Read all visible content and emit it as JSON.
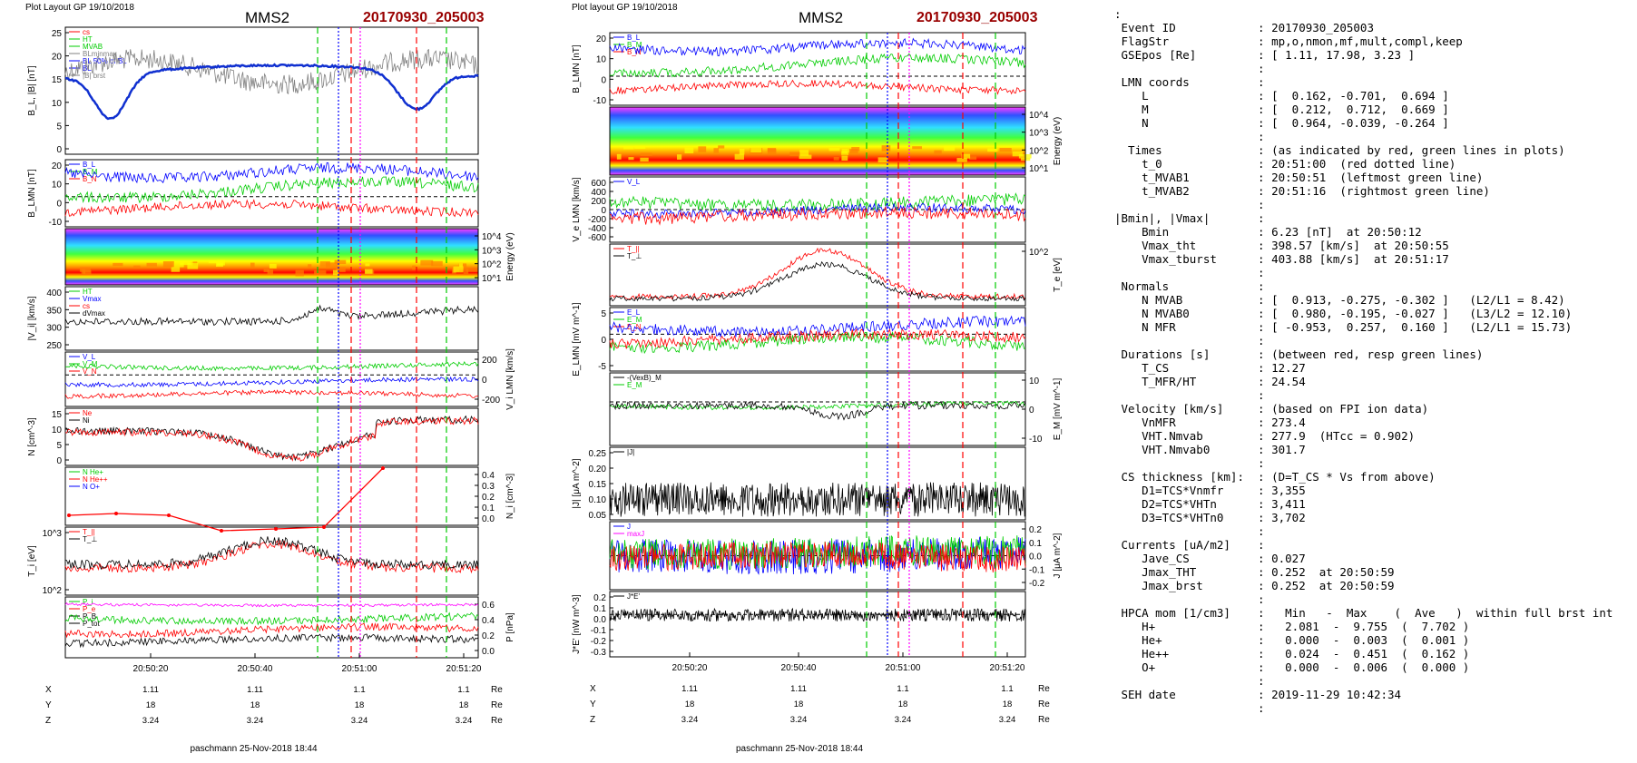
{
  "colors": {
    "blue": "#0000ff",
    "green": "#00cc00",
    "red": "#ff0000",
    "magenta": "#ff00ff",
    "black": "#000000",
    "gray": "#808080",
    "thickblue": "#1030d0",
    "darkred": "#990000"
  },
  "left": {
    "header": "Plot Layout GP 19/10/2018",
    "sc": "MMS2",
    "event": "20170930_205003",
    "footer": "paschmann 25-Nov-2018 18:44",
    "time_ticks": [
      "20:50:20",
      "20:50:40",
      "20:51:00",
      "20:51:20"
    ],
    "pos_rows": [
      {
        "label": "X",
        "vals": [
          "1.11",
          "1.11",
          "1.1",
          "1.1"
        ],
        "unit": "Re"
      },
      {
        "label": "Y",
        "vals": [
          "18",
          "18",
          "18",
          "18"
        ],
        "unit": "Re"
      },
      {
        "label": "Z",
        "vals": [
          "3.24",
          "3.24",
          "3.24",
          "3.24"
        ],
        "unit": "Re"
      }
    ],
    "panels": [
      {
        "ylabel": "B_L, |B| [nT]",
        "left_ticks": [
          "25",
          "20",
          "15",
          "10",
          "5",
          "0"
        ],
        "legend": [
          "cs",
          "HT",
          "MVAB",
          "BLminmax",
          "BL 50% of BL",
          "BL",
          "|B| brst"
        ]
      },
      {
        "ylabel": "B_LMN [nT]",
        "left_ticks": [
          "20",
          "10",
          "0",
          "-10"
        ],
        "legend": [
          "B_L",
          "B_M",
          "B_N"
        ]
      },
      {
        "ylabel": "Energy (eV)",
        "right_ticks": [
          "10^4",
          "10^3",
          "10^2",
          "10^1"
        ]
      },
      {
        "ylabel": "|V_i| [km/s]",
        "left_ticks": [
          "400",
          "350",
          "300",
          "250"
        ],
        "legend": [
          "HT",
          "Vmax",
          "cs",
          "dVmax"
        ]
      },
      {
        "ylabel": "V_i LMN [km/s]",
        "right_ticks": [
          "200",
          "0",
          "-200"
        ],
        "legend": [
          "V_L",
          "V_M",
          "V_N"
        ]
      },
      {
        "ylabel": "N [cm^-3]",
        "left_ticks": [
          "15",
          "10",
          "5",
          "0"
        ],
        "legend": [
          "Ne",
          "Ni"
        ]
      },
      {
        "ylabel": "N_i [cm^-3]",
        "right_ticks": [
          "0.4",
          "0.3",
          "0.2",
          "0.1",
          "0.0"
        ],
        "legend": [
          "N  He+",
          "N  He++",
          "N  O+"
        ]
      },
      {
        "ylabel": "T_i [eV]",
        "left_ticks": [
          "10^3",
          "10^2"
        ],
        "legend": [
          "T_||",
          "T_⊥"
        ]
      },
      {
        "ylabel": "P [nPa]",
        "right_ticks": [
          "0.6",
          "0.4",
          "0.2",
          "0.0"
        ],
        "legend": [
          "P_i",
          "P_e",
          "P_B",
          "P_tot"
        ]
      }
    ]
  },
  "right": {
    "header": "Plot layout GP 19/10/2018",
    "sc": "MMS2",
    "event": "20170930_205003",
    "footer": "paschmann 25-Nov-2018 18:44",
    "time_ticks": [
      "20:50:20",
      "20:50:40",
      "20:51:00",
      "20:51:20"
    ],
    "pos_rows": [
      {
        "label": "X",
        "vals": [
          "1.11",
          "1.11",
          "1.1",
          "1.1"
        ],
        "unit": "Re"
      },
      {
        "label": "Y",
        "vals": [
          "18",
          "18",
          "18",
          "18"
        ],
        "unit": "Re"
      },
      {
        "label": "Z",
        "vals": [
          "3.24",
          "3.24",
          "3.24",
          "3.24"
        ],
        "unit": "Re"
      }
    ],
    "panels": [
      {
        "ylabel": "B_LMN [nT]",
        "left_ticks": [
          "20",
          "10",
          "0",
          "-10"
        ],
        "legend": [
          "B_L",
          "B_M",
          "B_N"
        ]
      },
      {
        "ylabel": "Energy (eV)",
        "right_ticks": [
          "10^4",
          "10^3",
          "10^2",
          "10^1"
        ]
      },
      {
        "ylabel": "V_e LMN [km/s]",
        "left_ticks": [
          "600",
          "400",
          "200",
          "0",
          "-200",
          "-400",
          "-600"
        ],
        "legend": [
          "V_L"
        ]
      },
      {
        "ylabel": "T_e [eV]",
        "right_ticks": [
          "10^2"
        ],
        "legend": [
          "T_||",
          "T_⊥"
        ]
      },
      {
        "ylabel": "E_LMN [mV m^-1]",
        "left_ticks": [
          "5",
          "0",
          "-5"
        ],
        "legend": [
          "E_L",
          "E_M",
          "E_N"
        ]
      },
      {
        "ylabel": "E_M [mV m^-1]",
        "right_ticks": [
          "10",
          "0",
          "-10"
        ],
        "legend": [
          "-(VexB)_M",
          "E_M"
        ]
      },
      {
        "ylabel": "|J| [μA m^-2]",
        "left_ticks": [
          "0.25",
          "0.20",
          "0.15",
          "0.10",
          "0.05"
        ],
        "legend": [
          "|J|"
        ]
      },
      {
        "ylabel": "J [μA m^-2]",
        "right_ticks": [
          "0.2",
          "0.1",
          "0.0",
          "-0.1",
          "-0.2"
        ],
        "legend": [
          "J",
          "maxJ"
        ]
      },
      {
        "ylabel": "J*E' [nW m^-3]",
        "left_ticks": [
          "0.2",
          "0.1",
          "0.0",
          "-0.1",
          "-0.2",
          "-0.3"
        ],
        "legend": [
          "J*E'"
        ]
      }
    ]
  },
  "chart_data": [
    {
      "type": "line",
      "title": "MMS2 20170930_205003",
      "xlabel": "time",
      "x_ticks": [
        "20:50:20",
        "20:50:40",
        "20:51:00",
        "20:51:20"
      ],
      "series": [
        {
          "name": "BL",
          "x": [
            "20:50:07",
            "20:50:10",
            "20:50:13",
            "20:50:16",
            "20:50:22",
            "20:50:30",
            "20:50:38",
            "20:50:46",
            "20:50:52",
            "20:50:57",
            "20:51:02",
            "20:51:06",
            "20:51:10",
            "20:51:14",
            "20:51:18",
            "20:51:22"
          ],
          "values": [
            16,
            12,
            5,
            8,
            12,
            15,
            18,
            17,
            14,
            17,
            16,
            11,
            9,
            6,
            7,
            8
          ]
        },
        {
          "name": "|B| brst",
          "x": [
            "20:50:07",
            "20:50:15",
            "20:50:25",
            "20:50:35",
            "20:50:45",
            "20:50:55",
            "20:51:00",
            "20:51:05",
            "20:51:15",
            "20:51:22"
          ],
          "values": [
            20,
            19,
            18,
            19,
            21,
            20,
            22,
            15,
            21,
            18
          ]
        }
      ],
      "ylim": [
        0,
        25
      ]
    },
    {
      "type": "line",
      "title": "",
      "xlabel": "time",
      "x_ticks": [
        "20:50:20",
        "20:50:40",
        "20:51:00",
        "20:51:20"
      ],
      "series": [
        {
          "name": "|J|",
          "values": [
            0.05,
            0.1,
            0.08,
            0.12,
            0.07,
            0.1,
            0.09,
            0.14,
            0.1,
            0.16,
            0.12,
            0.2
          ]
        }
      ],
      "ylim": [
        0.05,
        0.25
      ]
    }
  ],
  "info": [
    ":",
    " Event ID            : 20170930_205003",
    " FlagStr             : mp,o,nmon,mf,mult,compl,keep",
    " GSEpos [Re]         : [ 1.11, 17.98, 3.23 ]",
    "                     :",
    " LMN coords          :",
    "    L                : [  0.162, -0.701,  0.694 ]",
    "    M                : [  0.212,  0.712,  0.669 ]",
    "    N                : [  0.964, -0.039, -0.264 ]",
    "                     :",
    "  Times              : (as indicated by red, green lines in plots)",
    "    t_0              : 20:51:00  (red dotted line)",
    "    t_MVAB1          : 20:50:51  (leftmost green line)",
    "    t_MVAB2          : 20:51:16  (rightmost green line)",
    "                     :",
    "|Bmin|, |Vmax|       :",
    "    Bmin             : 6.23 [nT]  at 20:50:12",
    "    Vmax_tht         : 398.57 [km/s]  at 20:50:55",
    "    Vmax_tburst      : 403.88 [km/s]  at 20:51:17",
    "                     :",
    " Normals             :",
    "    N MVAB           : [  0.913, -0.275, -0.302 ]   (L2/L1 = 8.42)",
    "    N MVAB0          : [  0.980, -0.195, -0.027 ]   (L3/L2 = 12.10)",
    "    N MFR            : [ -0.953,  0.257,  0.160 ]   (L2/L1 = 15.73)",
    "                     :",
    " Durations [s]       : (between red, resp green lines)",
    "    T_CS             : 12.27",
    "    T_MFR/HT         : 24.54",
    "                     :",
    " Velocity [km/s]     : (based on FPI ion data)",
    "    VnMFR            : 273.4",
    "    VHT.Nmvab        : 277.9  (HTcc = 0.902)",
    "    VHT.Nmvab0       : 301.7",
    "                     :",
    " CS thickness [km]:  : (D=T_CS * Vs from above)",
    "    D1=TCS*Vnmfr     : 3,355",
    "    D2=TCS*VHTn      : 3,411",
    "    D3=TCS*VHTn0     : 3,702",
    "                     :",
    " Currents [uA/m2]    :",
    "    Jave_CS          : 0.027",
    "    Jmax_THT         : 0.252  at 20:50:59",
    "    Jmax_brst        : 0.252  at 20:50:59",
    "                     :",
    " HPCA mom [1/cm3]    :   Min   -  Max    (  Ave   )  within full brst int",
    "    H+               :   2.081  -  9.755  (  7.702 )",
    "    He+              :   0.000  -  0.003  (  0.001 )",
    "    He++             :   0.024  -  0.451  (  0.162 )",
    "    O+               :   0.000  -  0.006  (  0.000 )",
    "                     :",
    " SEH date            : 2019-11-29 10:42:34",
    "                     :"
  ]
}
